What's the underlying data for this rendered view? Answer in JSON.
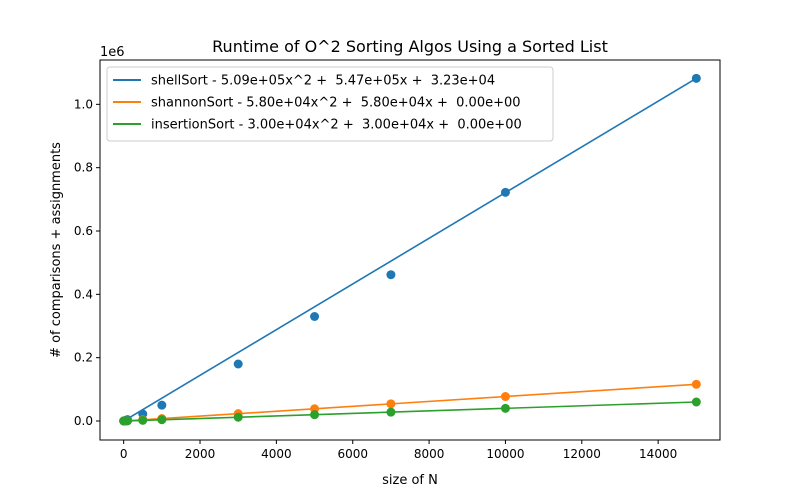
{
  "chart_data": {
    "type": "scatter",
    "title": "Runtime of O^2 Sorting Algos Using a Sorted List",
    "xlabel": "size of N",
    "ylabel": "# of comparisons + assignments",
    "y_offset_label": "1e6",
    "xlim": [
      -620,
      15620
    ],
    "ylim": [
      -60000,
      1140000
    ],
    "x_ticks": [
      0,
      2000,
      4000,
      6000,
      8000,
      10000,
      12000,
      14000
    ],
    "x_tick_labels": [
      "0",
      "2000",
      "4000",
      "6000",
      "8000",
      "10000",
      "12000",
      "14000"
    ],
    "y_ticks": [
      0,
      200000,
      400000,
      600000,
      800000,
      1000000
    ],
    "y_tick_labels": [
      "0.0",
      "0.2",
      "0.4",
      "0.6",
      "0.8",
      "1.0"
    ],
    "grid": false,
    "legend_position": "top-left",
    "series": [
      {
        "name": "shellSort - 5.09e+05x^2 +  5.47e+05x +  3.23e+04",
        "color": "#1f77b4",
        "x": [
          0,
          10,
          50,
          100,
          500,
          1000,
          3000,
          5000,
          7000,
          10000,
          15000
        ],
        "y": [
          0,
          400,
          2000,
          4500,
          22000,
          50000,
          180000,
          330000,
          462000,
          722000,
          1082000
        ],
        "line_x": [
          0,
          15000
        ],
        "line_y": [
          0,
          1082000
        ]
      },
      {
        "name": "shannonSort - 5.80e+04x^2 +  5.80e+04x +  0.00e+00",
        "color": "#ff7f0e",
        "x": [
          0,
          10,
          50,
          100,
          500,
          1000,
          3000,
          5000,
          7000,
          10000,
          15000
        ],
        "y": [
          0,
          77,
          387,
          773,
          3867,
          7733,
          23200,
          38667,
          54133,
          77333,
          116000
        ],
        "line_x": [
          0,
          15000
        ],
        "line_y": [
          0,
          116000
        ]
      },
      {
        "name": "insertionSort - 3.00e+04x^2 +  3.00e+04x +  0.00e+00",
        "color": "#2ca02c",
        "x": [
          0,
          10,
          50,
          100,
          500,
          1000,
          3000,
          5000,
          7000,
          10000,
          15000
        ],
        "y": [
          0,
          40,
          200,
          400,
          2000,
          4000,
          12000,
          20000,
          28000,
          40000,
          60000
        ],
        "line_x": [
          0,
          15000
        ],
        "line_y": [
          0,
          60000
        ]
      }
    ]
  }
}
